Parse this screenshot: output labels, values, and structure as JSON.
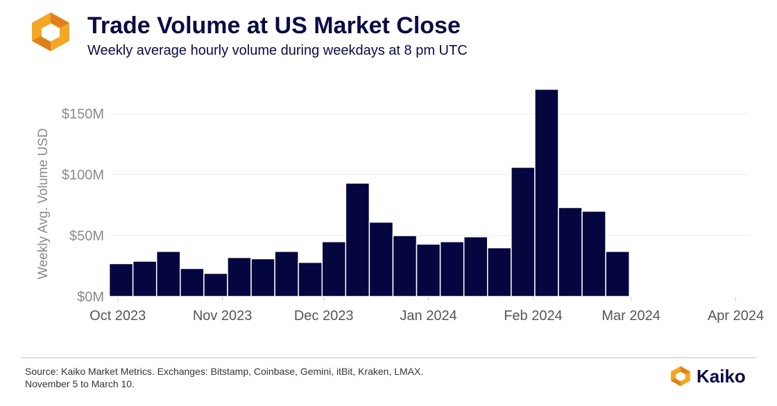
{
  "header": {
    "title": "Trade Volume at US Market Close",
    "subtitle": "Weekly average hourly volume during weekdays at 8 pm UTC"
  },
  "footer": {
    "source_line1": "Source: Kaiko Market Metrics. Exchanges: Bitstamp, Coinbase, Gemini, itBit, Kraken, LMAX.",
    "source_line2": "November 5 to March 10.",
    "brand": "Kaiko"
  },
  "colors": {
    "bar": "#05053f",
    "grid": "#e8e8e8",
    "axis_text": "#8a8a8a",
    "title": "#0b0b45",
    "logo_orange": "#f5a623",
    "logo_dark_orange": "#e0801c"
  },
  "chart_data": {
    "type": "bar",
    "title": "Trade Volume at US Market Close",
    "subtitle": "Weekly average hourly volume during weekdays at 8 pm UTC",
    "xlabel": "",
    "ylabel": "Weekly Avg. Volume USD",
    "ylim": [
      0,
      175
    ],
    "y_unit": "M USD",
    "yticks": [
      0,
      50,
      100,
      150
    ],
    "ytick_labels": [
      "$0M",
      "$50M",
      "$100M",
      "$150M"
    ],
    "x_axis_range": [
      "2023-09-29",
      "2024-04-05"
    ],
    "xticks": [
      "2023-10-01",
      "2023-11-01",
      "2023-12-01",
      "2024-01-01",
      "2024-02-01",
      "2024-03-01",
      "2024-04-01"
    ],
    "xtick_labels": [
      "Oct 2023",
      "Nov 2023",
      "Dec 2023",
      "Jan 2024",
      "Feb 2024",
      "Mar 2024",
      "Apr 2024"
    ],
    "grid": true,
    "bar_width_days": 7,
    "x": [
      "2023-10-02",
      "2023-10-09",
      "2023-10-16",
      "2023-10-23",
      "2023-10-30",
      "2023-11-06",
      "2023-11-13",
      "2023-11-20",
      "2023-11-27",
      "2023-12-04",
      "2023-12-11",
      "2023-12-18",
      "2023-12-25",
      "2024-01-01",
      "2024-01-08",
      "2024-01-15",
      "2024-01-22",
      "2024-01-29",
      "2024-02-05",
      "2024-02-12",
      "2024-02-19",
      "2024-02-26",
      "2024-03-04",
      "2024-03-11"
    ],
    "values": [
      27,
      29,
      37,
      23,
      19,
      32,
      31,
      37,
      28,
      45,
      93,
      61,
      50,
      43,
      45,
      49,
      40,
      106,
      170,
      73,
      70,
      37,
      0,
      0
    ]
  }
}
